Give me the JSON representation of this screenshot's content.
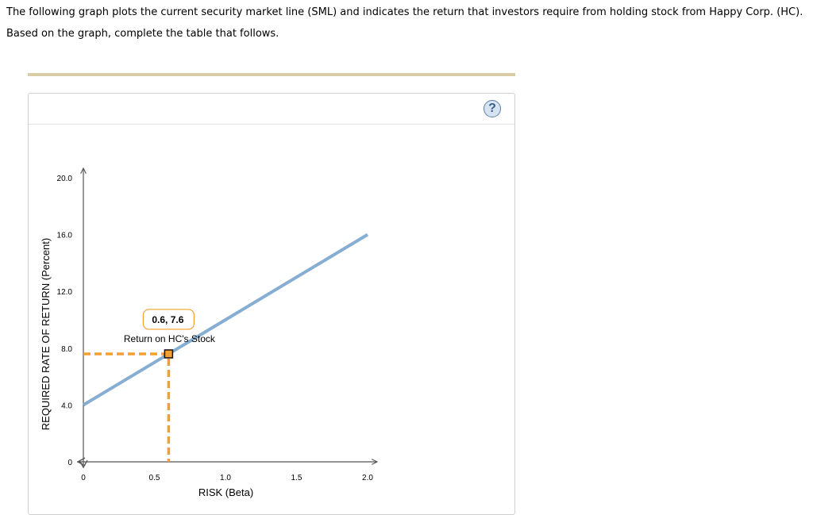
{
  "intro": {
    "text": "The following graph plots the current security market line (SML) and indicates the return that investors require from holding stock from Happy Corp. (HC). Based on the graph, complete the table that follows."
  },
  "help": {
    "label": "?",
    "icon": "help-circle-icon"
  },
  "chart_data": {
    "type": "line",
    "xlabel": "RISK (Beta)",
    "ylabel": "REQUIRED RATE OF RETURN (Percent)",
    "xlim": [
      0,
      2.0
    ],
    "ylim": [
      0,
      20.0
    ],
    "x_ticks": [
      "0",
      "0.5",
      "1.0",
      "1.5",
      "2.0"
    ],
    "y_ticks": [
      "0",
      "4.0",
      "8.0",
      "12.0",
      "16.0",
      "20.0"
    ],
    "grid": false,
    "series": [
      {
        "x": [
          0,
          2.0
        ],
        "y": [
          4.0,
          16.0
        ],
        "color": "#86aed3"
      }
    ],
    "point": {
      "x": 0.6,
      "y": 7.6,
      "label": "Return on HC's Stock",
      "tooltip": "0.6, 7.6",
      "color": "#f4a02f"
    }
  }
}
